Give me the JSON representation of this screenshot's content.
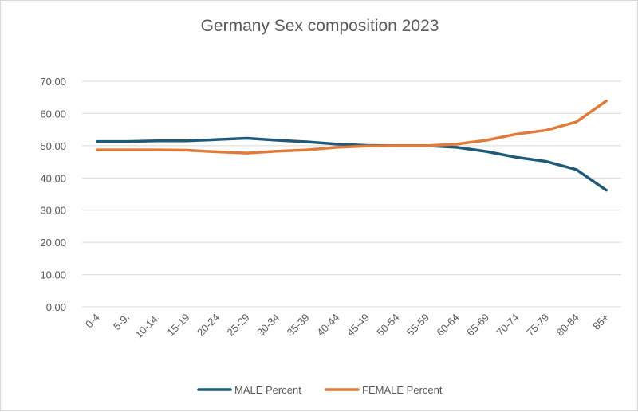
{
  "chart_data": {
    "type": "line",
    "title": "Germany Sex composition 2023",
    "xlabel": "",
    "ylabel": "",
    "ylim": [
      0,
      70
    ],
    "yticks": [
      "0.00",
      "10.00",
      "20.00",
      "30.00",
      "40.00",
      "50.00",
      "60.00",
      "70.00"
    ],
    "categories": [
      "0-4",
      "5-9.",
      "10-14.",
      "15-19",
      "20-24",
      "25-29",
      "30-34",
      "35-39",
      "40-44",
      "45-49",
      "50-54",
      "55-59",
      "60-64",
      "65-69",
      "70-74",
      "75-79",
      "80-84",
      "85+"
    ],
    "series": [
      {
        "name": "MALE Percent",
        "color": "#1f5a78",
        "values": [
          51.3,
          51.3,
          51.5,
          51.5,
          51.9,
          52.3,
          51.7,
          51.2,
          50.5,
          50.1,
          50.0,
          50.0,
          49.5,
          48.2,
          46.4,
          45.1,
          42.6,
          36.2
        ]
      },
      {
        "name": "FEMALE Percent",
        "color": "#e07b39",
        "values": [
          48.7,
          48.7,
          48.7,
          48.6,
          48.1,
          47.7,
          48.3,
          48.7,
          49.5,
          49.9,
          50.0,
          50.0,
          50.5,
          51.7,
          53.6,
          54.8,
          57.4,
          63.9
        ]
      }
    ],
    "grid": true,
    "legend_position": "bottom"
  }
}
